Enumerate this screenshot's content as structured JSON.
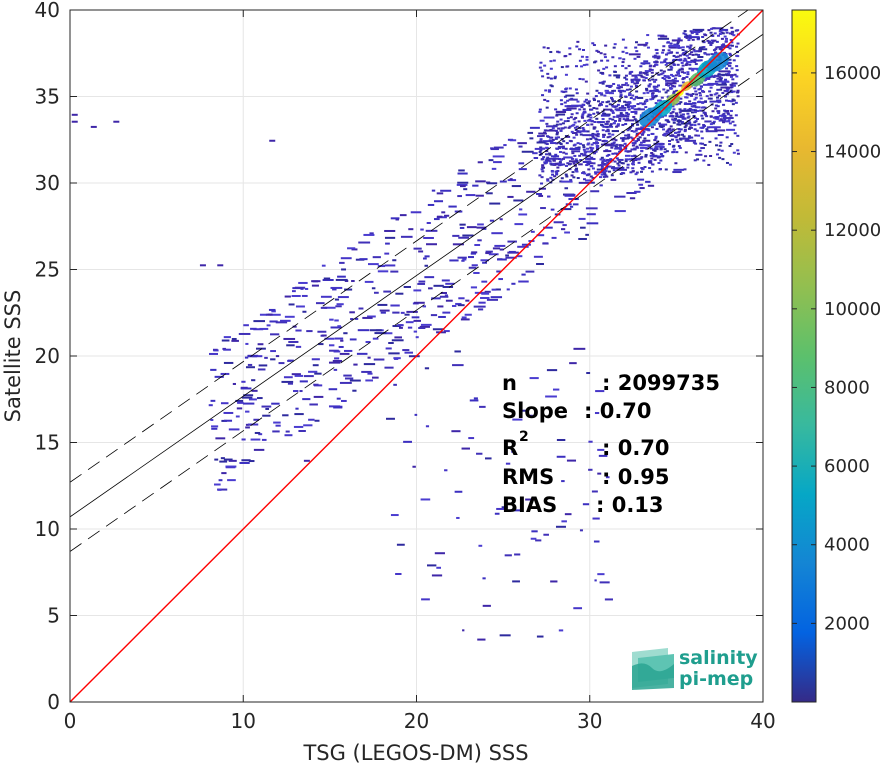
{
  "chart_data": {
    "type": "scatter",
    "title": "",
    "xlabel": "TSG (LEGOS-DM) SSS",
    "ylabel": "Satellite SSS",
    "xlim": [
      0,
      40
    ],
    "ylim": [
      0,
      40
    ],
    "xticks": [
      "0",
      "10",
      "20",
      "30",
      "40"
    ],
    "yticks": [
      "0",
      "5",
      "10",
      "15",
      "20",
      "25",
      "30",
      "35",
      "40"
    ],
    "grid": true,
    "colorbar": {
      "min": 0,
      "max": 17600,
      "ticks": [
        "2000",
        "4000",
        "6000",
        "8000",
        "10000",
        "12000",
        "14000",
        "16000"
      ],
      "tick_values": [
        2000,
        4000,
        6000,
        8000,
        10000,
        12000,
        14000,
        16000
      ],
      "colormap": "parula"
    },
    "lines": {
      "identity": {
        "x": [
          0,
          40
        ],
        "y": [
          0,
          40
        ],
        "color": "#ff0000"
      },
      "regression": {
        "x": [
          0,
          40
        ],
        "y": [
          10.7,
          38.6
        ],
        "color": "#000000"
      },
      "upper_bound": {
        "x": [
          0,
          40
        ],
        "y": [
          12.7,
          40.6
        ],
        "color": "#000000",
        "dash": true
      },
      "lower_bound": {
        "x": [
          0,
          40
        ],
        "y": [
          8.7,
          36.6
        ],
        "color": "#000000",
        "dash": true
      }
    },
    "density_core": [
      {
        "x": 35.2,
        "y": 35.2,
        "count": 17000
      },
      {
        "x": 35.6,
        "y": 35.6,
        "count": 14000
      },
      {
        "x": 34.8,
        "y": 34.8,
        "count": 11000
      },
      {
        "x": 36.2,
        "y": 36.0,
        "count": 9000
      },
      {
        "x": 34.2,
        "y": 34.3,
        "count": 6000
      },
      {
        "x": 36.8,
        "y": 36.6,
        "count": 5000
      },
      {
        "x": 37.4,
        "y": 37.0,
        "count": 3500
      },
      {
        "x": 33.5,
        "y": 33.8,
        "count": 3000
      }
    ],
    "stats": [
      {
        "label": "n",
        "value": ": 2099735"
      },
      {
        "label": "Slope",
        "value": ": 0.70"
      },
      {
        "label": "R",
        "sup": "2",
        "value": ": 0.70"
      },
      {
        "label": "RMS",
        "value": ": 0.95"
      },
      {
        "label": "BIAS",
        "value": ": 0.13"
      }
    ]
  },
  "logo": {
    "line1": "salinity",
    "line2": "pi-mep"
  },
  "colors": {
    "identity": "#ff0000",
    "scatter_low": "#3e26a8",
    "grid": "#e6e6e6",
    "logo": "#1f9e8e"
  }
}
